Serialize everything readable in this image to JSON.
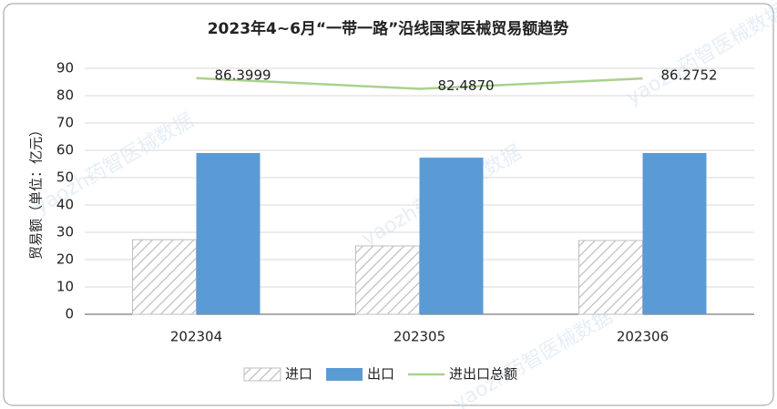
{
  "chart_data": {
    "type": "combo",
    "title": "2023年4~6月“一带一路”沿线国家医械贸易额趋势",
    "y_label": "贸易额（单位：亿元）",
    "watermark": "yaozh药智医械数据",
    "categories": [
      "202304",
      "202305",
      "202306"
    ],
    "series": [
      {
        "name": "进口",
        "type": "bar",
        "color": "#bfbfbf",
        "pattern": "hatch",
        "values": [
          27.3,
          25,
          27
        ]
      },
      {
        "name": "出口",
        "type": "bar",
        "color": "#5b9bd5",
        "values": [
          59,
          57.3,
          59
        ]
      },
      {
        "name": "进出口总额",
        "type": "line",
        "color": "#a9d18e",
        "values": [
          86.3999,
          82.487,
          86.2752
        ],
        "value_labels": [
          "86.3999",
          "82.4870",
          "86.2752"
        ]
      }
    ],
    "ylim": [
      0,
      90
    ],
    "yticks": [
      0,
      10,
      20,
      30,
      40,
      50,
      60,
      70,
      80,
      90
    ],
    "grid": true,
    "legend": "bottom"
  }
}
